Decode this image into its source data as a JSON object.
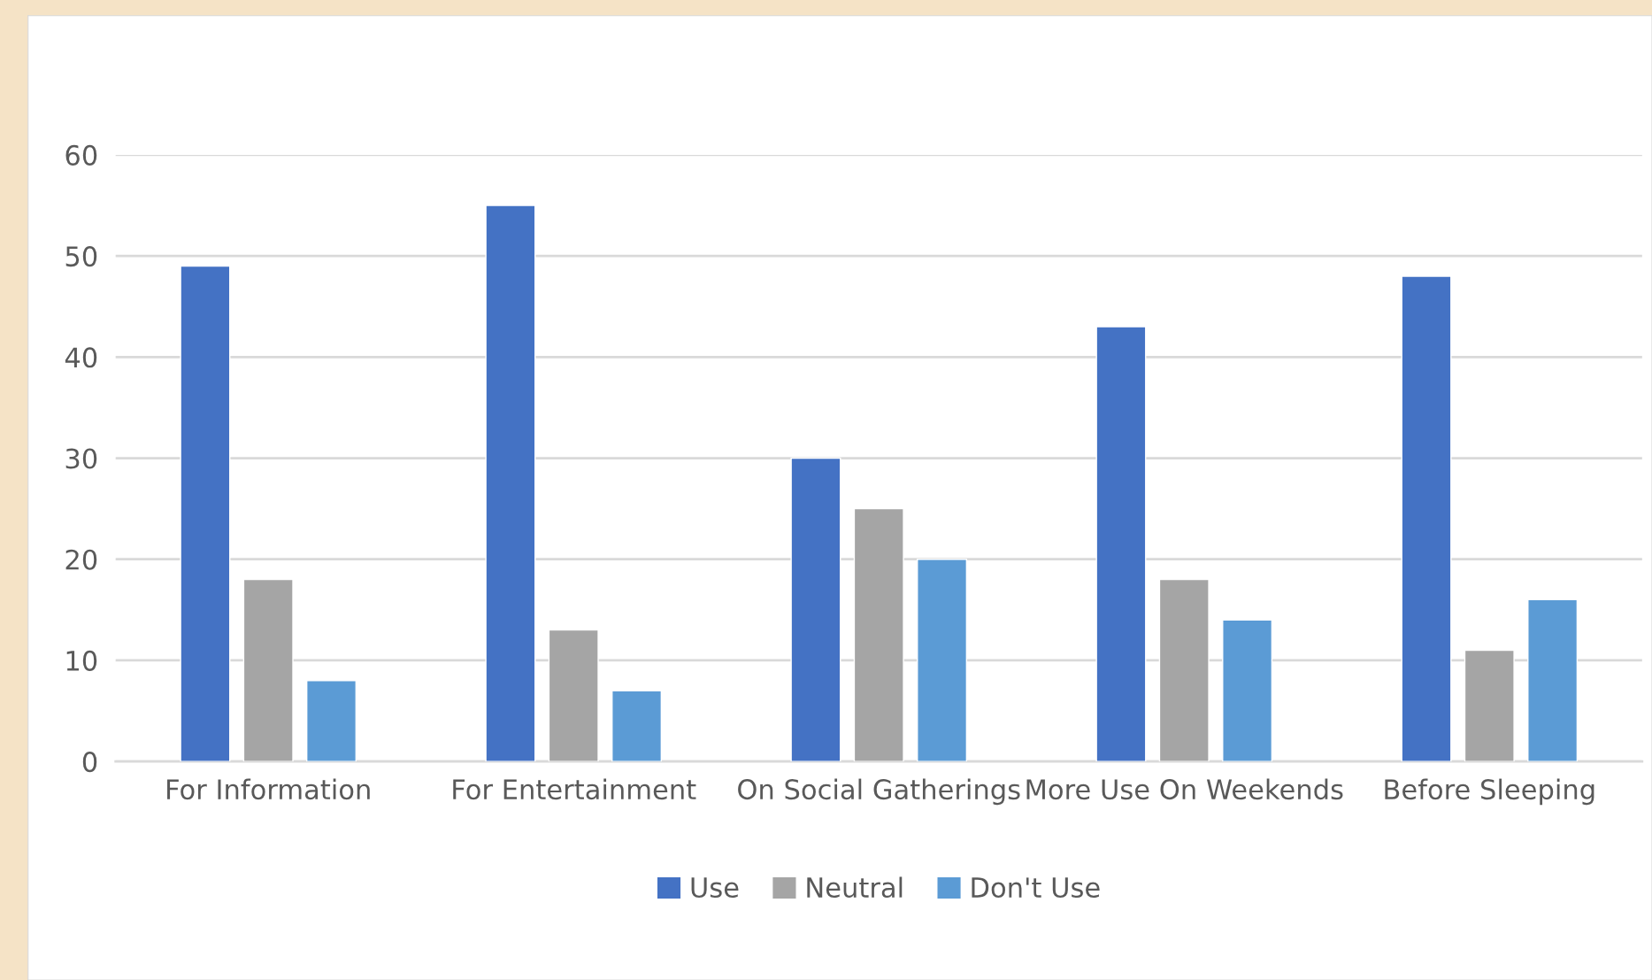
{
  "chart_data": {
    "type": "bar",
    "categories": [
      "For Information",
      "For Entertainment",
      "On Social Gatherings",
      "More Use On Weekends",
      "Before Sleeping"
    ],
    "series": [
      {
        "name": "Use",
        "color": "#4472c4",
        "values": [
          49,
          55,
          30,
          43,
          48
        ]
      },
      {
        "name": "Neutral",
        "color": "#a5a5a5",
        "values": [
          18,
          13,
          25,
          18,
          11
        ]
      },
      {
        "name": "Don't Use",
        "color": "#5b9bd5",
        "values": [
          8,
          7,
          20,
          14,
          16
        ]
      }
    ],
    "ylim": [
      0,
      60
    ],
    "yticks": [
      0,
      10,
      20,
      30,
      40,
      50,
      60
    ],
    "grid": "y",
    "legend": "bottom"
  }
}
